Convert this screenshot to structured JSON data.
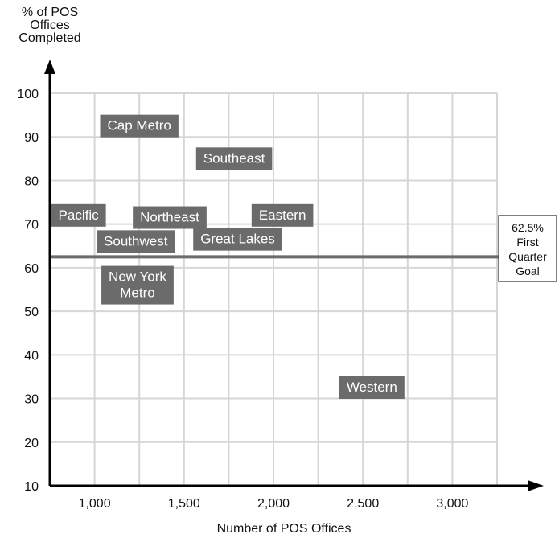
{
  "chart_data": {
    "type": "scatter",
    "title": "",
    "xlabel": "Number of POS Offices",
    "ylabel_lines": [
      "% of POS",
      "Offices",
      "Completed"
    ],
    "xlim": [
      750,
      3250
    ],
    "ylim": [
      10,
      100
    ],
    "x_ticks": [
      1000,
      1500,
      2000,
      2500,
      3000
    ],
    "x_tick_labels": [
      "1,000",
      "1,500",
      "2,000",
      "2,500",
      "3,000"
    ],
    "y_ticks": [
      10,
      20,
      30,
      40,
      50,
      60,
      70,
      80,
      90,
      100
    ],
    "y_tick_labels": [
      "10",
      "20",
      "30",
      "40",
      "50",
      "60",
      "70",
      "80",
      "90",
      "100"
    ],
    "grid": true,
    "label_color": "#6b6b6b",
    "goal_line": {
      "y": 62.5,
      "label_lines": [
        "62.5%",
        "First",
        "Quarter",
        "Goal"
      ]
    },
    "points": [
      {
        "name": "Cap Metro",
        "lines": [
          "Cap Metro"
        ],
        "x": 1250,
        "y": 92.5
      },
      {
        "name": "Southeast",
        "lines": [
          "Southeast"
        ],
        "x": 1780,
        "y": 85
      },
      {
        "name": "Pacific",
        "lines": [
          "Pacific"
        ],
        "x": 910,
        "y": 72
      },
      {
        "name": "Northeast",
        "lines": [
          "Northeast"
        ],
        "x": 1420,
        "y": 71.5
      },
      {
        "name": "Eastern",
        "lines": [
          "Eastern"
        ],
        "x": 2050,
        "y": 72
      },
      {
        "name": "Southwest",
        "lines": [
          "Southwest"
        ],
        "x": 1230,
        "y": 66
      },
      {
        "name": "Great Lakes",
        "lines": [
          "Great Lakes"
        ],
        "x": 1800,
        "y": 66.5
      },
      {
        "name": "New York Metro",
        "lines": [
          "New York",
          "Metro"
        ],
        "x": 1240,
        "y": 56
      },
      {
        "name": "Western",
        "lines": [
          "Western"
        ],
        "x": 2550,
        "y": 32.5
      }
    ]
  }
}
